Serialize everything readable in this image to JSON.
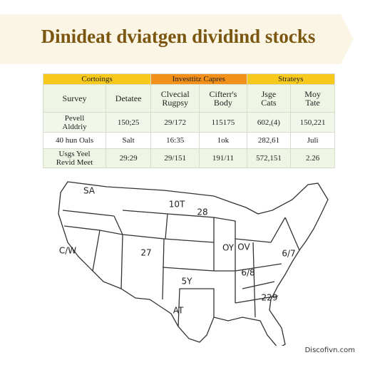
{
  "header": {
    "title": "Dinideat dviatgen dividind stocks"
  },
  "table": {
    "groups": [
      "Cortoings",
      "Investtitz Capres",
      "Strateys"
    ],
    "columns": [
      "Survey",
      "Detatee",
      "Clvecial\nRugpsy",
      "Cifterr's\nBody",
      "Jsge\nCats",
      "Moy\nTate"
    ],
    "rows": [
      [
        "Pevell\nAlddriy",
        "150;25",
        "29/172",
        "115175",
        "602,(4)",
        "150,221"
      ],
      [
        "40 hun Oals",
        "Salt",
        "16:35",
        "1ok",
        "282,61",
        "Juli"
      ],
      [
        "Usgs Yeel\nRevid Meet",
        "29:29",
        "29/151",
        "191/11",
        "572,151",
        "2.26"
      ]
    ]
  },
  "map": {
    "labels": [
      "SA",
      "10T",
      "28",
      "C/W",
      "27",
      "OY",
      "OV",
      "6/7",
      "6/8",
      "5Y",
      "229",
      "AT"
    ]
  },
  "footer": {
    "text": "Discofivn.com"
  }
}
